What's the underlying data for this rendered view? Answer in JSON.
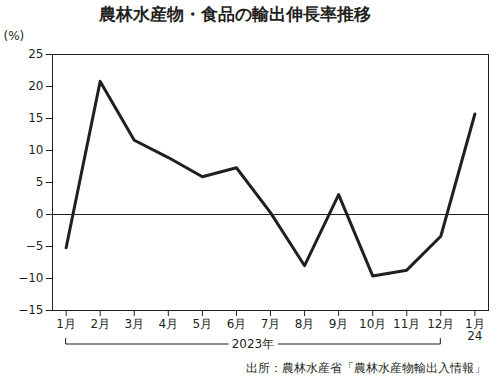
{
  "chart_data": {
    "type": "line",
    "title": "農林水産物・食品の輸出伸長率推移",
    "y_label": "(%)",
    "categories": [
      "1月",
      "2月",
      "3月",
      "4月",
      "5月",
      "6月",
      "7月",
      "8月",
      "9月",
      "10月",
      "11月",
      "12月",
      "1月\n24"
    ],
    "values": [
      -5.2,
      20.8,
      11.6,
      8.9,
      5.9,
      7.3,
      0.3,
      -8.0,
      3.1,
      -9.6,
      -8.7,
      -3.4,
      15.7
    ],
    "color": "#231f20",
    "ylim": [
      -15,
      25
    ],
    "yticks": [
      -15,
      -10,
      -5,
      0,
      5,
      10,
      15,
      20,
      25
    ],
    "grid": false,
    "annotation": "2023年",
    "caption": "出所：農林水産省「農林水産物輸出入情報」"
  }
}
